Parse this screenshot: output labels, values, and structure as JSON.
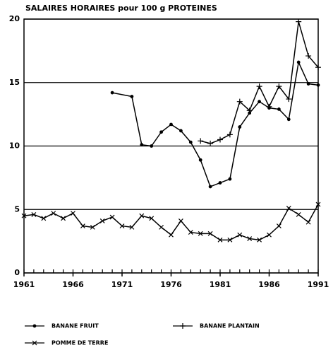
{
  "chart_data": {
    "type": "line",
    "title": "SALAIRES HORAIRES pour 100 g PROTEINES",
    "xlim": [
      1961,
      1991
    ],
    "xticks": [
      1961,
      1966,
      1971,
      1976,
      1981,
      1986,
      1991
    ],
    "xminorticks": [
      1961,
      1962,
      1963,
      1964,
      1965,
      1966,
      1967,
      1968,
      1969,
      1970,
      1971,
      1972,
      1973,
      1974,
      1975,
      1976,
      1977,
      1978,
      1979,
      1980,
      1981,
      1982,
      1983,
      1984,
      1985,
      1986,
      1987,
      1988,
      1989,
      1990,
      1991
    ],
    "ylim": [
      0,
      20
    ],
    "yticks": [
      0,
      5,
      10,
      15,
      20
    ],
    "grid": true,
    "series": [
      {
        "name": "BANANE FRUIT",
        "color": "#000000",
        "marker": "dot",
        "x": [
          1970,
          1972,
          1973,
          1974,
          1975,
          1976,
          1977,
          1978,
          1979,
          1980,
          1981,
          1982,
          1983,
          1984,
          1985,
          1986,
          1987,
          1988,
          1989,
          1990,
          1991
        ],
        "values": [
          14.2,
          13.9,
          10.1,
          10.0,
          11.1,
          11.7,
          11.2,
          10.3,
          8.9,
          6.8,
          7.1,
          7.4,
          11.5,
          12.6,
          13.5,
          13.0,
          12.9,
          12.1,
          16.6,
          14.9,
          14.8
        ]
      },
      {
        "name": "BANANE PLANTAIN",
        "color": "#000000",
        "marker": "plus",
        "x": [
          1979,
          1980,
          1981,
          1982,
          1983,
          1984,
          1985,
          1986,
          1987,
          1988,
          1989,
          1990,
          1991
        ],
        "values": [
          10.4,
          10.2,
          10.5,
          10.9,
          13.5,
          12.8,
          14.7,
          13.1,
          14.7,
          13.7,
          19.8,
          17.1,
          16.2
        ]
      },
      {
        "name": "POMME DE TERRE",
        "color": "#000000",
        "marker": "cross",
        "x": [
          1961,
          1962,
          1963,
          1964,
          1965,
          1966,
          1967,
          1968,
          1969,
          1970,
          1971,
          1972,
          1973,
          1974,
          1975,
          1976,
          1977,
          1978,
          1979,
          1980,
          1981,
          1982,
          1983,
          1984,
          1985,
          1986,
          1987,
          1988,
          1989,
          1990,
          1991
        ],
        "values": [
          4.5,
          4.6,
          4.3,
          4.7,
          4.3,
          4.7,
          3.7,
          3.6,
          4.1,
          4.4,
          3.7,
          3.6,
          4.5,
          4.3,
          3.6,
          3.0,
          4.1,
          3.2,
          3.1,
          3.1,
          2.6,
          2.6,
          3.0,
          2.7,
          2.6,
          3.0,
          3.7,
          5.1,
          4.6,
          4.0,
          5.4
        ]
      }
    ]
  }
}
